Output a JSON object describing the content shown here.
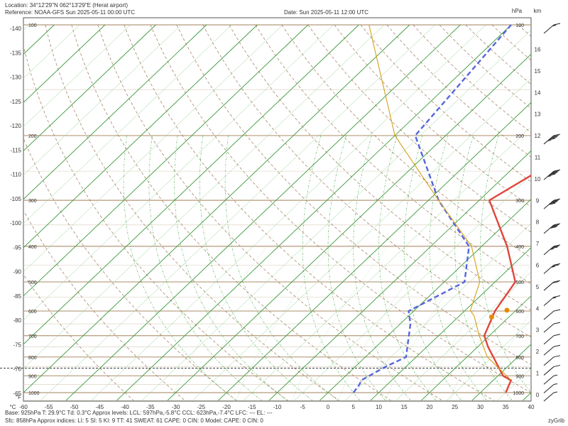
{
  "header": {
    "location": "Location:  34°12'29\"N  062°13'29\"E (Herat airport)",
    "reference": "Reference: NOAA-GFS Sun 2025-05-11 00:00 UTC",
    "date": "Date: Sun 2025-05-11 12:00 UTC"
  },
  "footer": {
    "line1": "Base: 925hPa  T: 29.9°C  Td: 0.3°C     Approx levels:  LCL: 597hPa,-5.8°C   CCL: 623hPa,-7.4°C   LFC: ---    EL: ---",
    "line2": "Sfc: 858hPa      Approx indices:  LI: 5   SI: 5   KI: 9   TT: 41   SWEAT: 61     CAPE: 0  CIN: 0         Model: CAPE: 0 CIN: 0",
    "brand": "zyGrib"
  },
  "chart_data": {
    "type": "line",
    "title": "",
    "xlabel": "°C",
    "ylabel_left": "°F",
    "ylabel_right_pressure": "hPa",
    "ylabel_right_altitude": "km",
    "x_ticks": [
      "-60",
      "-55",
      "-50",
      "-45",
      "-40",
      "-35",
      "-30",
      "-25",
      "-20",
      "-15",
      "-10",
      "-5",
      "0",
      "5",
      "10",
      "15",
      "20",
      "25",
      "30",
      "35",
      "40"
    ],
    "fahrenheit_ticks": [
      "-140",
      "-135",
      "-130",
      "-125",
      "-120",
      "-115",
      "-110",
      "-105",
      "-100",
      "-95",
      "-90",
      "-85",
      "-80",
      "-75",
      "-70",
      "-65"
    ],
    "pressure_levels": [
      "100",
      "200",
      "300",
      "400",
      "500",
      "600",
      "700",
      "800",
      "900",
      "1000"
    ],
    "altitude_ticks": [
      "0",
      "1",
      "2",
      "3",
      "4",
      "5",
      "6",
      "7",
      "8",
      "9",
      "10",
      "11",
      "12",
      "13",
      "14",
      "15",
      "16"
    ],
    "xlim": [
      -60,
      40
    ],
    "pressure_range_hPa": [
      100,
      1050
    ],
    "series": [
      {
        "name": "Temperature",
        "color": "#e0453c",
        "style": "solid",
        "points": [
          [
            35.0,
            1000
          ],
          [
            34.0,
            950
          ],
          [
            33.5,
            925
          ],
          [
            31.0,
            900
          ],
          [
            22.0,
            750
          ],
          [
            19.0,
            700
          ],
          [
            16.0,
            600
          ],
          [
            14.0,
            500
          ],
          [
            5.0,
            400
          ],
          [
            -8.0,
            300
          ],
          [
            0.0,
            200
          ],
          [
            1.0,
            100
          ]
        ]
      },
      {
        "name": "Dewpoint",
        "color": "#5566dd",
        "style": "dashed",
        "points": [
          [
            5.0,
            1000
          ],
          [
            4.5,
            950
          ],
          [
            4.0,
            925
          ],
          [
            6.0,
            850
          ],
          [
            8.0,
            800
          ],
          [
            2.0,
            650
          ],
          [
            -1.0,
            600
          ],
          [
            4.0,
            500
          ],
          [
            -2.5,
            400
          ],
          [
            -18.0,
            300
          ],
          [
            -36.0,
            200
          ],
          [
            -40.0,
            100
          ]
        ]
      },
      {
        "name": "Parcel",
        "color": "#d4a017",
        "style": "solid",
        "points": [
          [
            33.5,
            925
          ],
          [
            24.0,
            800
          ],
          [
            18.0,
            700
          ],
          [
            13.0,
            620
          ],
          [
            11.0,
            597
          ],
          [
            7.0,
            500
          ],
          [
            -2.0,
            400
          ],
          [
            -18.0,
            300
          ],
          [
            -40.0,
            200
          ],
          [
            -68.0,
            100
          ]
        ]
      }
    ],
    "markers": [
      {
        "label": "LCL",
        "pressure": 597,
        "temp": -5.8,
        "color": "#e58a00"
      },
      {
        "label": "CCL",
        "pressure": 623,
        "temp": -7.4,
        "color": "#e58a00"
      }
    ],
    "surface_pressure_line": 858,
    "wind_barbs": [
      {
        "pressure": 100,
        "speed_kt": 15
      },
      {
        "pressure": 200,
        "speed_kt": 55
      },
      {
        "pressure": 250,
        "speed_kt": 55
      },
      {
        "pressure": 300,
        "speed_kt": 50
      },
      {
        "pressure": 350,
        "speed_kt": 40
      },
      {
        "pressure": 400,
        "speed_kt": 35
      },
      {
        "pressure": 450,
        "speed_kt": 25
      },
      {
        "pressure": 500,
        "speed_kt": 20
      },
      {
        "pressure": 550,
        "speed_kt": 15
      },
      {
        "pressure": 600,
        "speed_kt": 10
      },
      {
        "pressure": 650,
        "speed_kt": 10
      },
      {
        "pressure": 700,
        "speed_kt": 10
      },
      {
        "pressure": 750,
        "speed_kt": 10
      },
      {
        "pressure": 800,
        "speed_kt": 10
      },
      {
        "pressure": 850,
        "speed_kt": 10
      },
      {
        "pressure": 900,
        "speed_kt": 5
      },
      {
        "pressure": 950,
        "speed_kt": 5
      },
      {
        "pressure": 1000,
        "speed_kt": 5
      }
    ],
    "grid": true
  }
}
